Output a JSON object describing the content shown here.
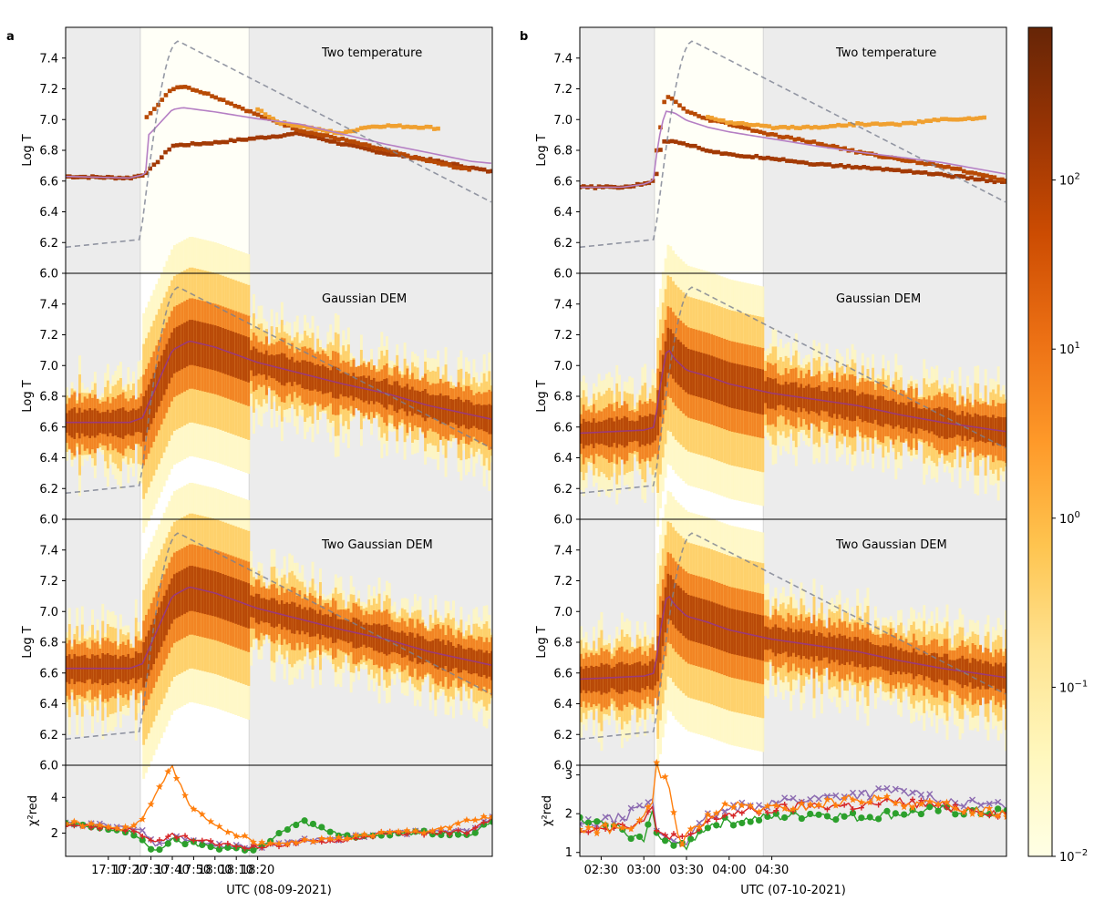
{
  "figure": {
    "labels": [
      "a",
      "b"
    ]
  },
  "chart_data": [
    {
      "type": "heatmap",
      "panel": "a",
      "title": "Two temperature",
      "xlabel": "",
      "ylabel": "Log T",
      "x_range_min": [
        -1070,
        -870
      ],
      "ylim": [
        6.0,
        7.6
      ],
      "y_ticks": [
        "6.0",
        "6.2",
        "6.4",
        "6.6",
        "6.8",
        "7.0",
        "7.2",
        "7.4"
      ],
      "impulsive_phase_min": [
        -1035,
        -984
      ],
      "components": [
        {
          "t_min": [
            -1070,
            -1040,
            -1034,
            -1030,
            -1020,
            -1000,
            -980,
            -960,
            -940,
            -920,
            -900,
            -870
          ],
          "logT": [
            6.63,
            6.62,
            6.64,
            6.68,
            6.83,
            6.85,
            6.88,
            6.91,
            6.84,
            6.78,
            6.74,
            6.66
          ]
        },
        {
          "t_min": [
            -1032,
            -1026,
            -1020,
            -1015,
            -1000,
            -980,
            -960,
            -940,
            -920,
            -900,
            -880
          ],
          "logT": [
            7.02,
            7.11,
            7.2,
            7.22,
            7.15,
            7.03,
            6.93,
            6.87,
            6.8,
            6.73,
            6.67
          ]
        },
        {
          "t_min": [
            -980,
            -970,
            -960,
            -950,
            -940,
            -930,
            -920,
            -900,
            -895
          ],
          "logT": [
            7.07,
            6.98,
            6.96,
            6.93,
            6.91,
            6.95,
            6.96,
            6.95,
            6.94
          ]
        }
      ]
    },
    {
      "type": "heatmap",
      "panel": "a",
      "title": "Gaussian DEM",
      "xlabel": "",
      "ylabel": "Log T",
      "x_range_min": [
        -1070,
        -870
      ],
      "ylim": [
        6.0,
        7.6
      ],
      "y_ticks": [
        "6.0",
        "6.2",
        "6.4",
        "6.6",
        "6.8",
        "7.0",
        "7.2",
        "7.4"
      ],
      "impulsive_phase_min": [
        -1035,
        -984
      ],
      "peak_logT": {
        "t_min": [
          -1070,
          -1040,
          -1034,
          -1028,
          -1020,
          -1012,
          -1000,
          -980,
          -960,
          -940,
          -920,
          -900,
          -870
        ],
        "logT": [
          6.63,
          6.63,
          6.66,
          6.85,
          7.1,
          7.16,
          7.12,
          7.02,
          6.95,
          6.88,
          6.82,
          6.74,
          6.65
        ]
      }
    },
    {
      "type": "heatmap",
      "panel": "a",
      "title": "Two Gaussian DEM",
      "xlabel": "",
      "ylabel": "Log T",
      "x_range_min": [
        -1070,
        -870
      ],
      "ylim": [
        6.0,
        7.6
      ],
      "y_ticks": [
        "6.0",
        "6.2",
        "6.4",
        "6.6",
        "6.8",
        "7.0",
        "7.2",
        "7.4"
      ],
      "impulsive_phase_min": [
        -1035,
        -984
      ],
      "peak_logT": {
        "t_min": [
          -1070,
          -1040,
          -1034,
          -1028,
          -1020,
          -1012,
          -1000,
          -980,
          -960,
          -940,
          -920,
          -900,
          -870
        ],
        "logT": [
          6.63,
          6.63,
          6.66,
          6.85,
          7.1,
          7.16,
          7.12,
          7.02,
          6.95,
          6.88,
          6.82,
          6.74,
          6.65
        ]
      }
    },
    {
      "type": "line",
      "panel": "a",
      "title": "",
      "xlabel": "UTC (08-09-2021)",
      "ylabel": "χ²red",
      "x_range_min": [
        -1070,
        -870
      ],
      "x_ticks": [
        {
          "t_min": -1050,
          "label": "17:10"
        },
        {
          "t_min": -1040,
          "label": "17:20"
        },
        {
          "t_min": -1030,
          "label": "17:30"
        },
        {
          "t_min": -1020,
          "label": "17:40"
        },
        {
          "t_min": -1010,
          "label": "17:50"
        },
        {
          "t_min": -1000,
          "label": "18:00"
        },
        {
          "t_min": -990,
          "label": "18:10"
        },
        {
          "t_min": -980,
          "label": "18:20"
        }
      ],
      "ylim": [
        0.7,
        5.8
      ],
      "y_ticks": [
        "2",
        "4"
      ],
      "impulsive_phase_min": [
        -1035,
        -984
      ],
      "series": [
        {
          "color": "#8c6bb1",
          "marker": "x",
          "t_min": [
            -1070,
            -1040,
            -1034,
            -1028,
            -1020,
            -1000,
            -980,
            -960,
            -940,
            -920,
            -900,
            -880,
            -870
          ],
          "values": [
            2.6,
            2.3,
            2.1,
            1.3,
            1.8,
            1.3,
            1.2,
            1.6,
            1.7,
            2.1,
            2.0,
            2.2,
            2.9
          ]
        },
        {
          "color": "#2ca02c",
          "marker": "o",
          "t_min": [
            -1070,
            -1040,
            -1034,
            -1028,
            -1020,
            -1000,
            -980,
            -960,
            -940,
            -920,
            -900,
            -880,
            -870
          ],
          "values": [
            2.5,
            2.1,
            1.5,
            1.0,
            1.6,
            1.2,
            1.1,
            2.7,
            1.8,
            2.0,
            2.0,
            2.0,
            2.7
          ]
        },
        {
          "color": "#d62728",
          "marker": "+",
          "t_min": [
            -1070,
            -1040,
            -1034,
            -1028,
            -1020,
            -1000,
            -980,
            -960,
            -940,
            -920,
            -900,
            -880,
            -870
          ],
          "values": [
            2.5,
            2.2,
            1.9,
            1.4,
            1.9,
            1.4,
            1.2,
            1.5,
            1.6,
            2.0,
            2.0,
            2.1,
            2.8
          ]
        },
        {
          "color": "#ff7f0e",
          "marker": "*",
          "t_min": [
            -1070,
            -1040,
            -1034,
            -1028,
            -1020,
            -1012,
            -1000,
            -980,
            -960,
            -940,
            -920,
            -900,
            -880,
            -870
          ],
          "values": [
            2.6,
            2.2,
            2.8,
            4.2,
            5.7,
            3.5,
            2.5,
            1.4,
            1.5,
            1.7,
            2.0,
            2.1,
            2.7,
            2.9
          ]
        }
      ]
    },
    {
      "type": "heatmap",
      "panel": "b",
      "title": "Two temperature",
      "xlabel": "",
      "ylabel": "Log T",
      "x_range_min": [
        -1070,
        -870
      ],
      "ylim": [
        6.0,
        7.6
      ],
      "y_ticks": [
        "6.0",
        "6.2",
        "6.4",
        "6.6",
        "6.8",
        "7.0",
        "7.2",
        "7.4"
      ],
      "impulsive_phase_min": [
        -1035,
        -984
      ],
      "components": [
        {
          "t_min": [
            -1070,
            -1050,
            -1040,
            -1036,
            -1034,
            -1032,
            -1030,
            -1025,
            -1020,
            -1010,
            -1000,
            -980,
            -960,
            -940,
            -920,
            -900,
            -870
          ],
          "logT": [
            6.56,
            6.56,
            6.58,
            6.6,
            6.65,
            6.82,
            6.86,
            6.86,
            6.84,
            6.8,
            6.77,
            6.75,
            6.71,
            6.69,
            6.67,
            6.64,
            6.59
          ]
        },
        {
          "t_min": [
            -1034,
            -1031,
            -1030,
            -1026,
            -1020,
            -1010,
            -1000,
            -980,
            -960,
            -940,
            -920,
            -900,
            -870
          ],
          "logT": [
            6.8,
            7.05,
            7.15,
            7.13,
            7.05,
            7.0,
            6.97,
            6.9,
            6.85,
            6.79,
            6.74,
            6.7,
            6.6
          ]
        },
        {
          "t_min": [
            -1010,
            -1000,
            -980,
            -960,
            -940,
            -920,
            -900,
            -880
          ],
          "logT": [
            7.02,
            6.98,
            6.95,
            6.95,
            6.97,
            6.97,
            7.0,
            7.01
          ]
        }
      ]
    },
    {
      "type": "heatmap",
      "panel": "b",
      "title": "Gaussian DEM",
      "xlabel": "",
      "ylabel": "Log T",
      "x_range_min": [
        -1070,
        -870
      ],
      "ylim": [
        6.0,
        7.6
      ],
      "y_ticks": [
        "6.0",
        "6.2",
        "6.4",
        "6.6",
        "6.8",
        "7.0",
        "7.2",
        "7.4"
      ],
      "impulsive_phase_min": [
        -1035,
        -984
      ],
      "peak_logT": {
        "t_min": [
          -1070,
          -1040,
          -1035,
          -1032,
          -1029,
          -1026,
          -1020,
          -1010,
          -1000,
          -980,
          -960,
          -940,
          -920,
          -900,
          -870
        ],
        "logT": [
          6.56,
          6.58,
          6.6,
          6.9,
          7.12,
          7.05,
          6.97,
          6.93,
          6.88,
          6.82,
          6.78,
          6.74,
          6.68,
          6.63,
          6.57
        ]
      }
    },
    {
      "type": "heatmap",
      "panel": "b",
      "title": "Two Gaussian DEM",
      "xlabel": "",
      "ylabel": "Log T",
      "x_range_min": [
        -1070,
        -870
      ],
      "ylim": [
        6.0,
        7.6
      ],
      "y_ticks": [
        "6.0",
        "6.2",
        "6.4",
        "6.6",
        "6.8",
        "7.0",
        "7.2",
        "7.4"
      ],
      "impulsive_phase_min": [
        -1035,
        -984
      ],
      "peak_logT": {
        "t_min": [
          -1070,
          -1040,
          -1035,
          -1032,
          -1029,
          -1026,
          -1020,
          -1010,
          -1000,
          -980,
          -960,
          -940,
          -920,
          -900,
          -870
        ],
        "logT": [
          6.56,
          6.58,
          6.6,
          6.9,
          7.12,
          7.05,
          6.97,
          6.93,
          6.88,
          6.82,
          6.78,
          6.74,
          6.68,
          6.63,
          6.57
        ]
      }
    },
    {
      "type": "line",
      "panel": "b",
      "title": "",
      "xlabel": "UTC (07-10-2021)",
      "ylabel": "χ²red",
      "x_range_min": [
        -1070,
        -870
      ],
      "x_ticks": [
        {
          "t_min": -1060,
          "label": "02:30"
        },
        {
          "t_min": -1040,
          "label": "03:00"
        },
        {
          "t_min": -1020,
          "label": "03:30"
        },
        {
          "t_min": -1000,
          "label": "04:00"
        },
        {
          "t_min": -980,
          "label": "04:30"
        }
      ],
      "ylim": [
        0.9,
        3.25
      ],
      "y_ticks": [
        "1",
        "2",
        "3"
      ],
      "impulsive_phase_min": [
        -1035,
        -984
      ],
      "series": [
        {
          "color": "#8c6bb1",
          "marker": "x",
          "t_min": [
            -1070,
            -1050,
            -1040,
            -1036,
            -1034,
            -1030,
            -1025,
            -1020,
            -1010,
            -1000,
            -980,
            -960,
            -940,
            -920,
            -900,
            -870
          ],
          "values": [
            1.7,
            1.9,
            2.2,
            2.3,
            1.6,
            1.4,
            1.3,
            1.3,
            1.9,
            2.1,
            2.3,
            2.4,
            2.5,
            2.6,
            2.3,
            2.2
          ]
        },
        {
          "color": "#2ca02c",
          "marker": "o",
          "t_min": [
            -1070,
            -1050,
            -1040,
            -1036,
            -1034,
            -1030,
            -1025,
            -1020,
            -1010,
            -1000,
            -980,
            -960,
            -940,
            -920,
            -900,
            -870
          ],
          "values": [
            1.8,
            1.6,
            1.3,
            2.0,
            1.5,
            1.2,
            1.3,
            1.2,
            1.7,
            1.8,
            1.9,
            2.0,
            1.9,
            2.0,
            2.1,
            2.0
          ]
        },
        {
          "color": "#d62728",
          "marker": "+",
          "t_min": [
            -1070,
            -1050,
            -1040,
            -1036,
            -1034,
            -1030,
            -1025,
            -1020,
            -1010,
            -1000,
            -980,
            -960,
            -940,
            -920,
            -900,
            -870
          ],
          "values": [
            1.6,
            1.7,
            1.8,
            2.1,
            1.5,
            1.5,
            1.4,
            1.3,
            1.8,
            2.0,
            2.1,
            2.2,
            2.2,
            2.3,
            2.2,
            2.0
          ]
        },
        {
          "color": "#ff7f0e",
          "marker": "*",
          "t_min": [
            -1070,
            -1050,
            -1040,
            -1036,
            -1034,
            -1032,
            -1030,
            -1027,
            -1025,
            -1022,
            -1020,
            -1010,
            -1000,
            -980,
            -960,
            -940,
            -920,
            -900,
            -870
          ],
          "values": [
            1.6,
            1.6,
            1.9,
            2.2,
            3.2,
            2.9,
            2.9,
            2.6,
            1.5,
            1.3,
            1.4,
            1.9,
            2.2,
            2.1,
            2.2,
            2.4,
            2.3,
            2.2,
            2.0
          ]
        }
      ]
    },
    {
      "type": "colorbar",
      "scale": "log",
      "range": [
        0.01,
        800
      ],
      "tick_values": [
        0.01,
        0.1,
        1,
        10,
        100
      ],
      "colors": [
        "#ffffe5",
        "#fff7bc",
        "#fee391",
        "#fec44f",
        "#fe9929",
        "#ec7014",
        "#cc4c02",
        "#993404",
        "#662506"
      ]
    }
  ]
}
